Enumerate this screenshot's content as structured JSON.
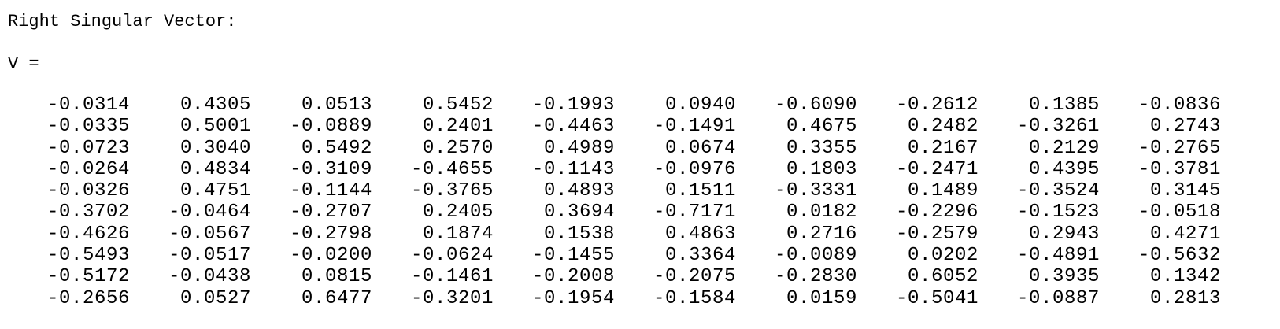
{
  "output": {
    "heading": "Right Singular Vector:",
    "var_label": "V ="
  },
  "matrix": {
    "rows": [
      [
        "-0.0314",
        "0.4305",
        "0.0513",
        "0.5452",
        "-0.1993",
        "0.0940",
        "-0.6090",
        "-0.2612",
        "0.1385",
        "-0.0836"
      ],
      [
        "-0.0335",
        "0.5001",
        "-0.0889",
        "0.2401",
        "-0.4463",
        "-0.1491",
        "0.4675",
        "0.2482",
        "-0.3261",
        "0.2743"
      ],
      [
        "-0.0723",
        "0.3040",
        "0.5492",
        "0.2570",
        "0.4989",
        "0.0674",
        "0.3355",
        "0.2167",
        "0.2129",
        "-0.2765"
      ],
      [
        "-0.0264",
        "0.4834",
        "-0.3109",
        "-0.4655",
        "-0.1143",
        "-0.0976",
        "0.1803",
        "-0.2471",
        "0.4395",
        "-0.3781"
      ],
      [
        "-0.0326",
        "0.4751",
        "-0.1144",
        "-0.3765",
        "0.4893",
        "0.1511",
        "-0.3331",
        "0.1489",
        "-0.3524",
        "0.3145"
      ],
      [
        "-0.3702",
        "-0.0464",
        "-0.2707",
        "0.2405",
        "0.3694",
        "-0.7171",
        "0.0182",
        "-0.2296",
        "-0.1523",
        "-0.0518"
      ],
      [
        "-0.4626",
        "-0.0567",
        "-0.2798",
        "0.1874",
        "0.1538",
        "0.4863",
        "0.2716",
        "-0.2579",
        "0.2943",
        "0.4271"
      ],
      [
        "-0.5493",
        "-0.0517",
        "-0.0200",
        "-0.0624",
        "-0.1455",
        "0.3364",
        "-0.0089",
        "0.0202",
        "-0.4891",
        "-0.5632"
      ],
      [
        "-0.5172",
        "-0.0438",
        "0.0815",
        "-0.1461",
        "-0.2008",
        "-0.2075",
        "-0.2830",
        "0.6052",
        "0.3935",
        "0.1342"
      ],
      [
        "-0.2656",
        "0.0527",
        "0.6477",
        "-0.3201",
        "-0.1954",
        "-0.1584",
        "0.0159",
        "-0.5041",
        "-0.0887",
        "0.2813"
      ]
    ]
  }
}
